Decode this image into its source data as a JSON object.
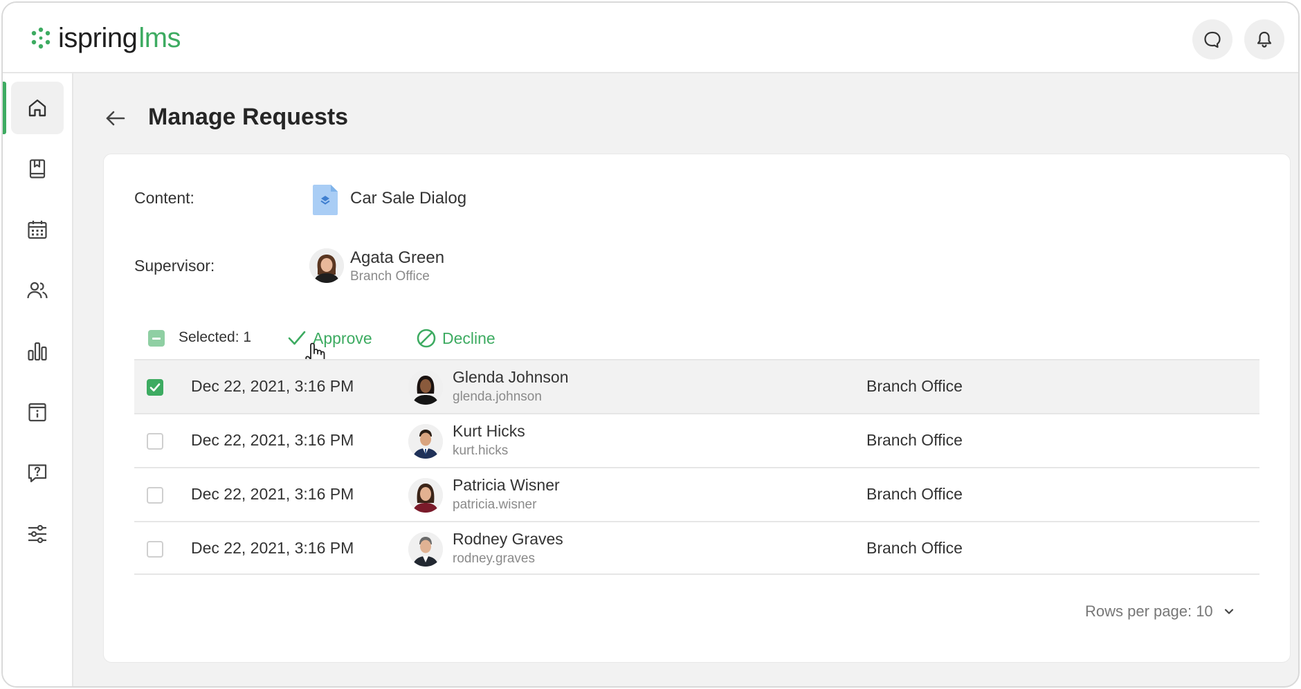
{
  "brand": {
    "name_main": "ispring",
    "name_accent": "lms",
    "accent_color": "#3dab61"
  },
  "topbar": {
    "icons": [
      "chat-icon",
      "bell-icon"
    ]
  },
  "sidebar": {
    "items": [
      {
        "icon": "home-icon",
        "active": true
      },
      {
        "icon": "book-icon",
        "active": false
      },
      {
        "icon": "calendar-icon",
        "active": false
      },
      {
        "icon": "users-icon",
        "active": false
      },
      {
        "icon": "chart-icon",
        "active": false
      },
      {
        "icon": "info-card-icon",
        "active": false
      },
      {
        "icon": "question-chat-icon",
        "active": false
      },
      {
        "icon": "settings-sliders-icon",
        "active": false
      }
    ]
  },
  "page": {
    "title": "Manage Requests"
  },
  "content": {
    "label": "Content:",
    "value": "Car Sale Dialog"
  },
  "supervisor": {
    "label": "Supervisor:",
    "name": "Agata Green",
    "department": "Branch Office"
  },
  "toolbar": {
    "selected_text": "Selected: 1",
    "approve_label": "Approve",
    "decline_label": "Decline"
  },
  "rows": [
    {
      "date": "Dec 22, 2021, 3:16 PM",
      "name": "Glenda Johnson",
      "login": "glenda.johnson",
      "department": "Branch Office",
      "checked": true
    },
    {
      "date": "Dec 22, 2021, 3:16 PM",
      "name": "Kurt Hicks",
      "login": "kurt.hicks",
      "department": "Branch Office",
      "checked": false
    },
    {
      "date": "Dec 22, 2021, 3:16 PM",
      "name": "Patricia Wisner",
      "login": "patricia.wisner",
      "department": "Branch Office",
      "checked": false
    },
    {
      "date": "Dec 22, 2021, 3:16 PM",
      "name": "Rodney Graves",
      "login": "rodney.graves",
      "department": "Branch Office",
      "checked": false
    }
  ],
  "pagination": {
    "rows_per_page": "Rows per page: 10"
  }
}
